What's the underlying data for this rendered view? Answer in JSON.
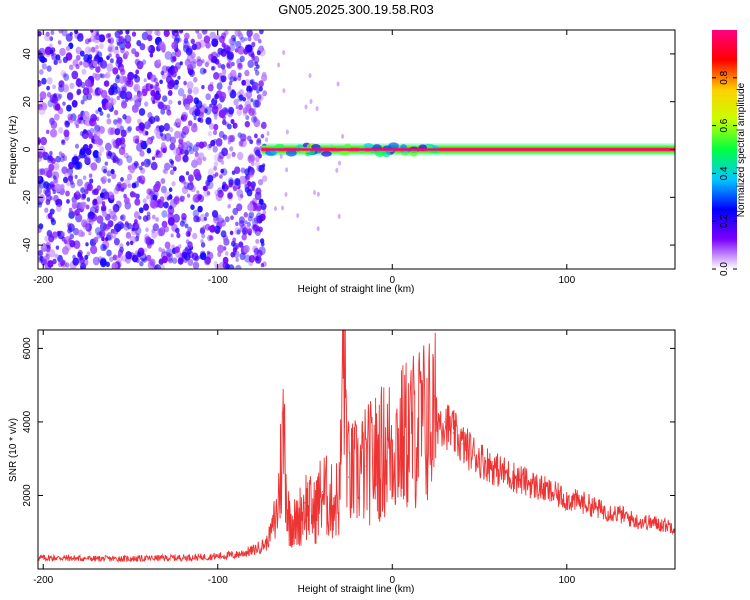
{
  "figure": {
    "title": "GN05.2025.300.19.58.R03"
  },
  "chart_data": [
    {
      "type": "heatmap",
      "title": "GN05.2025.300.19.58.R03",
      "xlabel": "Height of straight line (km)",
      "ylabel": "Frequency (Hz)",
      "xlim": [
        -203,
        162
      ],
      "ylim": [
        -50,
        50
      ],
      "xticks": [
        -200,
        -100,
        0,
        100
      ],
      "yticks": [
        -40,
        -20,
        0,
        20,
        40
      ],
      "description_of_regions": [
        {
          "name": "noise",
          "x_range": [
            -203,
            -73
          ],
          "y_range": [
            -50,
            50
          ],
          "amplitude": [
            0.05,
            0.25
          ]
        },
        {
          "name": "signal-line",
          "x_range": [
            -75,
            162
          ],
          "y_center": 0,
          "amplitude": 1.0
        }
      ],
      "colorbar": {
        "label": "Normalized spectral amplitude",
        "range": [
          0,
          1
        ],
        "ticks": [
          0.0,
          0.2,
          0.4,
          0.6,
          0.8
        ],
        "tick_labels": [
          "0.0",
          "0.2",
          "0.4",
          "0.6",
          "0.8"
        ],
        "colors": [
          "#ffffff",
          "#7a00ff",
          "#0000ff",
          "#00c8ff",
          "#00ff40",
          "#c8ff00",
          "#ffd000",
          "#ff0000",
          "#ff0080"
        ]
      }
    },
    {
      "type": "line",
      "xlabel": "Height of straight line (km)",
      "ylabel": "SNR (10 * v/v)",
      "xlim": [
        -203,
        162
      ],
      "ylim": [
        0,
        6500
      ],
      "xticks": [
        -200,
        -100,
        0,
        100
      ],
      "yticks": [
        2000,
        4000,
        6000
      ],
      "color": "#ee3333",
      "series": [
        {
          "name": "SNR",
          "x": [
            -203,
            -190,
            -170,
            -150,
            -130,
            -110,
            -90,
            -80,
            -72,
            -66,
            -62,
            -60,
            -55,
            -50,
            -45,
            -40,
            -35,
            -30,
            -28,
            -25,
            -20,
            -15,
            -10,
            -5,
            0,
            5,
            10,
            15,
            20,
            25,
            30,
            35,
            40,
            50,
            60,
            70,
            80,
            90,
            100,
            110,
            120,
            130,
            140,
            150,
            162
          ],
          "values": [
            300,
            300,
            280,
            280,
            300,
            320,
            380,
            500,
            700,
            1500,
            3900,
            1500,
            1200,
            1800,
            1500,
            2100,
            1800,
            2000,
            6000,
            2500,
            2600,
            2800,
            3000,
            3200,
            3400,
            3500,
            3700,
            3900,
            4000,
            4100,
            4000,
            3700,
            3400,
            3000,
            2700,
            2500,
            2300,
            2100,
            1900,
            1800,
            1600,
            1500,
            1300,
            1250,
            1150
          ]
        }
      ]
    }
  ]
}
